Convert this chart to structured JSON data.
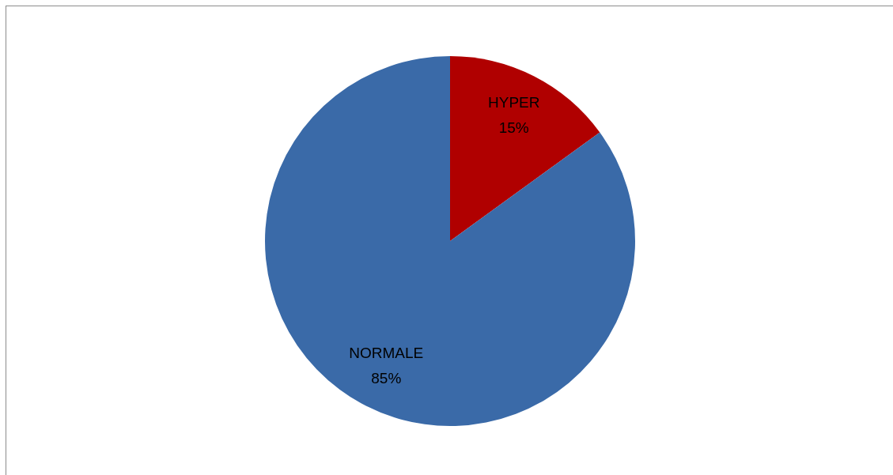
{
  "chart_data": {
    "type": "pie",
    "categories": [
      "HYPER",
      "NORMALE"
    ],
    "values": [
      15,
      85
    ],
    "colors": [
      "#b00000",
      "#3a6aa8"
    ],
    "value_labels": [
      "15%",
      "85%"
    ],
    "legend": false
  }
}
